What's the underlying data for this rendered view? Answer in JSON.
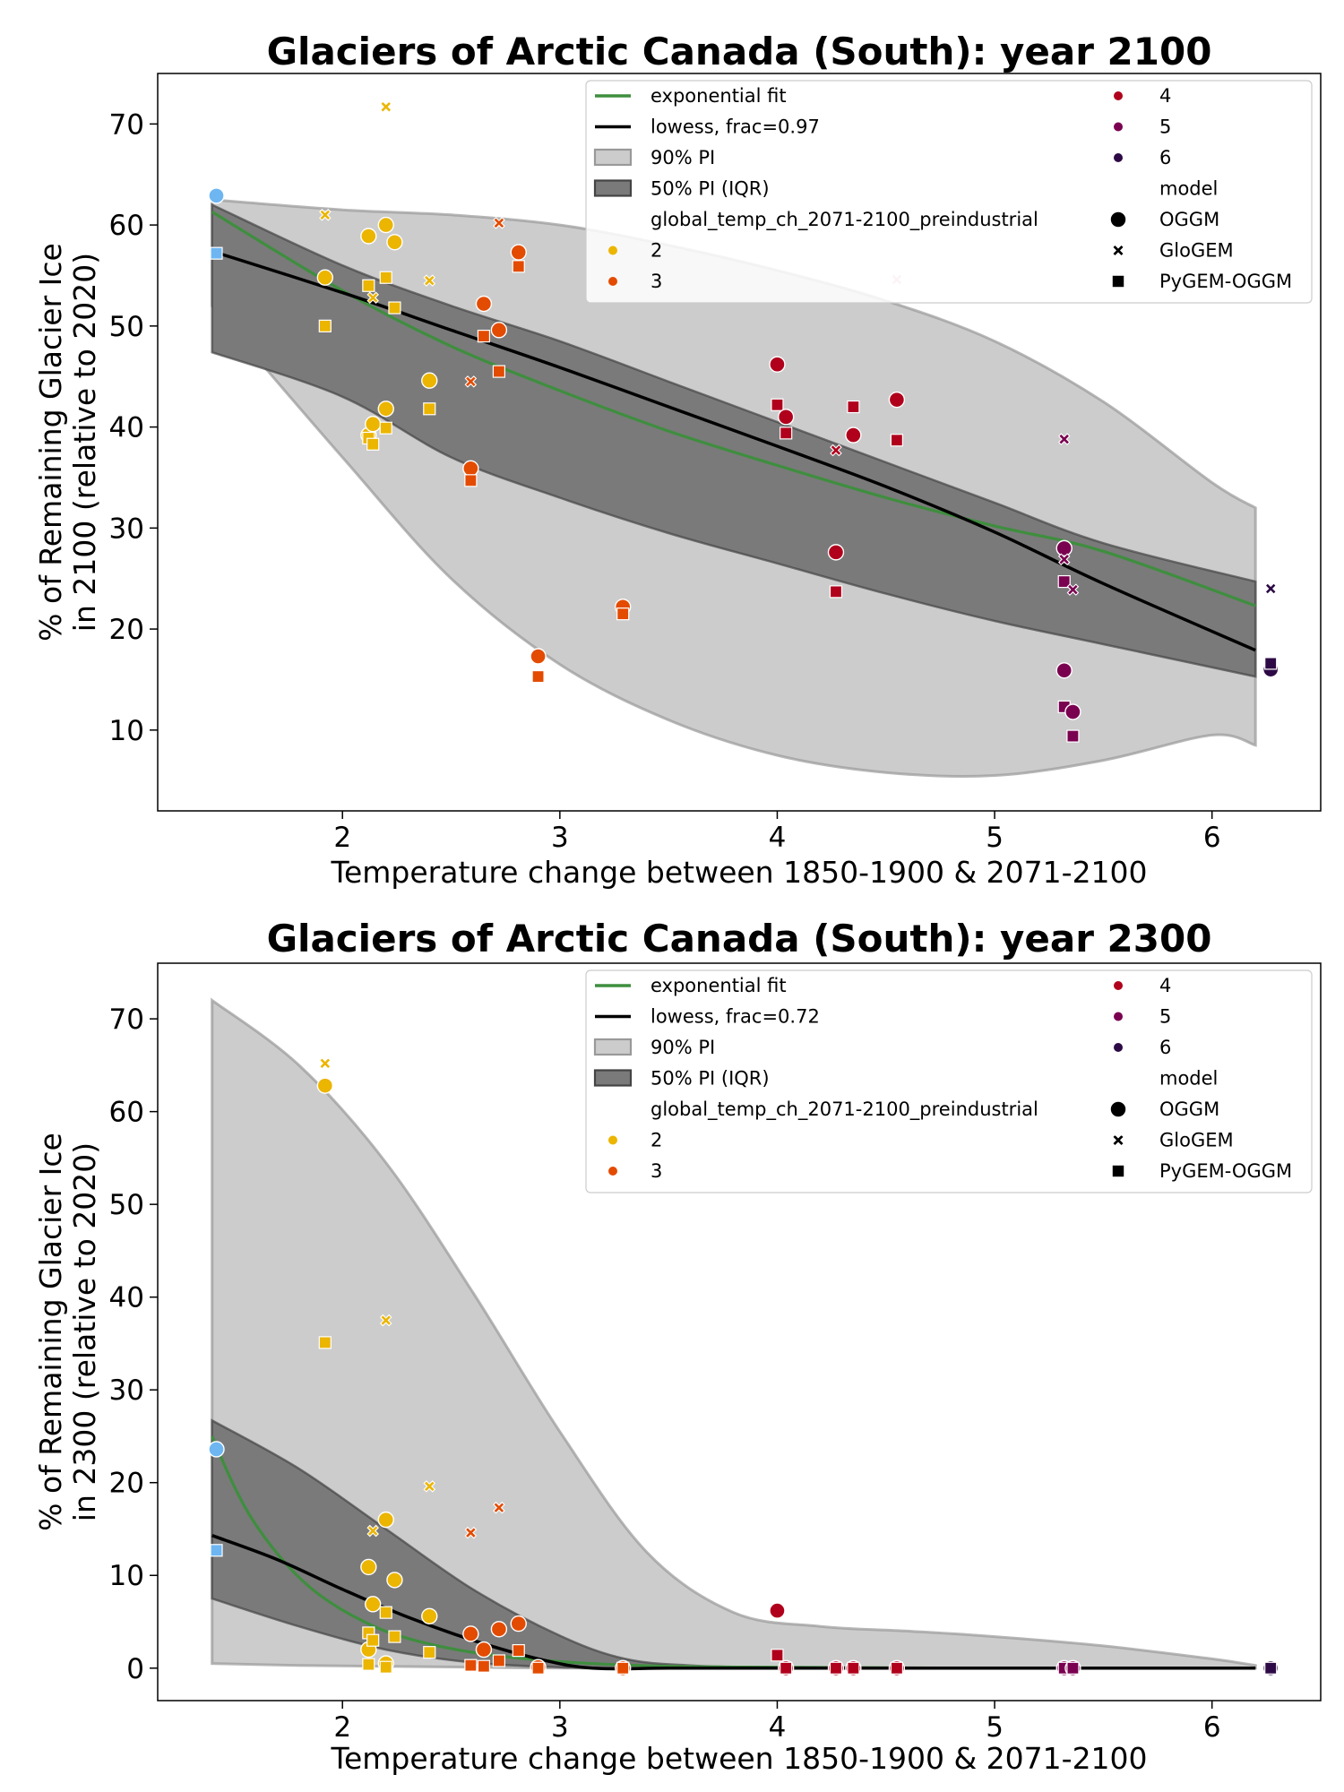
{
  "chart_data": [
    {
      "type": "scatter",
      "title": "Glaciers of Arctic Canada (South):  year 2100",
      "xlabel": "Temperature change between 1850-1900 & 2071-2100",
      "ylabel_line1": "% of Remaining Glacier Ice",
      "ylabel_line2": "in 2100 (relative to 2020)",
      "xlim": [
        1.15,
        6.5
      ],
      "ylim": [
        2,
        75
      ],
      "x_ticks": [
        2,
        3,
        4,
        5,
        6
      ],
      "y_ticks": [
        10,
        20,
        30,
        40,
        50,
        60,
        70
      ],
      "legend": {
        "fit_label": "exponential fit",
        "lowess_label": "lowess, frac=0.97",
        "pi90_label": "90% PI",
        "pi50_label": "50% PI (IQR)",
        "hue_title": "global_temp_ch_2071-2100_preindustrial",
        "hue_levels": [
          "2",
          "3",
          "4",
          "5",
          "6"
        ],
        "style_title": "model",
        "style_levels": [
          "OGGM",
          "GloGEM",
          "PyGEM-OGGM"
        ]
      },
      "exp_fit": {
        "x": [
          1.4,
          2.0,
          2.5,
          3.0,
          3.5,
          4.0,
          4.5,
          5.0,
          5.5,
          6.2
        ],
        "y": [
          61.3,
          53.5,
          48.0,
          43.6,
          39.6,
          36.2,
          33.0,
          30.2,
          27.7,
          22.3
        ]
      },
      "lowess": {
        "x": [
          1.4,
          2.0,
          2.5,
          3.0,
          3.5,
          4.0,
          4.5,
          5.0,
          5.5,
          6.2
        ],
        "y": [
          57.4,
          53.3,
          49.6,
          45.9,
          42.0,
          38.1,
          34.1,
          29.6,
          24.5,
          17.9
        ]
      },
      "pi90": {
        "x": [
          1.4,
          2.0,
          2.5,
          3.0,
          3.5,
          4.0,
          4.5,
          5.0,
          5.5,
          6.0,
          6.2
        ],
        "upper": [
          62.5,
          61.5,
          61.0,
          60.0,
          58.0,
          55.5,
          52.5,
          48.5,
          42.5,
          34.5,
          32.0
        ],
        "lower": [
          52.0,
          37.0,
          25.0,
          16.5,
          11.0,
          7.5,
          5.8,
          5.5,
          7.0,
          9.5,
          8.5
        ]
      },
      "pi50": {
        "x": [
          1.4,
          2.0,
          2.5,
          3.0,
          3.5,
          4.0,
          4.5,
          5.0,
          5.5,
          6.2
        ],
        "upper": [
          62.0,
          56.0,
          52.0,
          48.5,
          44.5,
          40.5,
          36.5,
          32.5,
          28.5,
          24.7
        ],
        "lower": [
          47.4,
          43.0,
          37.0,
          33.0,
          29.5,
          26.5,
          23.5,
          20.8,
          18.5,
          15.3
        ]
      },
      "points": [
        {
          "x": 1.42,
          "y": 62.9,
          "m": "OGGM",
          "t": 1.4
        },
        {
          "x": 1.42,
          "y": 57.2,
          "m": "PyGEM-OGGM",
          "t": 1.4
        },
        {
          "x": 1.92,
          "y": 54.8,
          "m": "OGGM",
          "t": 1.9
        },
        {
          "x": 1.92,
          "y": 61.0,
          "m": "GloGEM",
          "t": 1.9
        },
        {
          "x": 1.92,
          "y": 50.0,
          "m": "PyGEM-OGGM",
          "t": 1.9
        },
        {
          "x": 2.12,
          "y": 58.9,
          "m": "OGGM",
          "t": 2.1
        },
        {
          "x": 2.12,
          "y": 39.2,
          "m": "OGGM",
          "t": 2.1
        },
        {
          "x": 2.14,
          "y": 40.3,
          "m": "OGGM",
          "t": 2.1
        },
        {
          "x": 2.14,
          "y": 52.8,
          "m": "GloGEM",
          "t": 2.1
        },
        {
          "x": 2.12,
          "y": 54.0,
          "m": "PyGEM-OGGM",
          "t": 2.1
        },
        {
          "x": 2.12,
          "y": 38.9,
          "m": "PyGEM-OGGM",
          "t": 2.1
        },
        {
          "x": 2.14,
          "y": 38.3,
          "m": "PyGEM-OGGM",
          "t": 2.1
        },
        {
          "x": 2.2,
          "y": 60.0,
          "m": "OGGM",
          "t": 2.2
        },
        {
          "x": 2.2,
          "y": 41.8,
          "m": "OGGM",
          "t": 2.2
        },
        {
          "x": 2.2,
          "y": 71.7,
          "m": "GloGEM",
          "t": 2.2
        },
        {
          "x": 2.2,
          "y": 54.8,
          "m": "PyGEM-OGGM",
          "t": 2.2
        },
        {
          "x": 2.2,
          "y": 39.9,
          "m": "PyGEM-OGGM",
          "t": 2.2
        },
        {
          "x": 2.24,
          "y": 58.3,
          "m": "OGGM",
          "t": 2.2
        },
        {
          "x": 2.24,
          "y": 51.8,
          "m": "PyGEM-OGGM",
          "t": 2.2
        },
        {
          "x": 2.4,
          "y": 44.6,
          "m": "OGGM",
          "t": 2.4
        },
        {
          "x": 2.4,
          "y": 54.5,
          "m": "GloGEM",
          "t": 2.4
        },
        {
          "x": 2.4,
          "y": 41.8,
          "m": "PyGEM-OGGM",
          "t": 2.4
        },
        {
          "x": 2.59,
          "y": 35.9,
          "m": "OGGM",
          "t": 2.6
        },
        {
          "x": 2.59,
          "y": 44.5,
          "m": "GloGEM",
          "t": 2.6
        },
        {
          "x": 2.59,
          "y": 34.7,
          "m": "PyGEM-OGGM",
          "t": 2.6
        },
        {
          "x": 2.65,
          "y": 52.2,
          "m": "OGGM",
          "t": 2.65
        },
        {
          "x": 2.65,
          "y": 49.0,
          "m": "PyGEM-OGGM",
          "t": 2.65
        },
        {
          "x": 2.72,
          "y": 49.6,
          "m": "OGGM",
          "t": 2.7
        },
        {
          "x": 2.72,
          "y": 60.2,
          "m": "GloGEM",
          "t": 2.7
        },
        {
          "x": 2.72,
          "y": 45.5,
          "m": "PyGEM-OGGM",
          "t": 2.7
        },
        {
          "x": 2.81,
          "y": 57.3,
          "m": "OGGM",
          "t": 2.8
        },
        {
          "x": 2.81,
          "y": 55.9,
          "m": "PyGEM-OGGM",
          "t": 2.8
        },
        {
          "x": 2.9,
          "y": 17.3,
          "m": "OGGM",
          "t": 2.9
        },
        {
          "x": 2.9,
          "y": 15.3,
          "m": "PyGEM-OGGM",
          "t": 2.9
        },
        {
          "x": 3.29,
          "y": 22.2,
          "m": "OGGM",
          "t": 3.3
        },
        {
          "x": 3.29,
          "y": 21.5,
          "m": "PyGEM-OGGM",
          "t": 3.3
        },
        {
          "x": 4.0,
          "y": 46.2,
          "m": "OGGM",
          "t": 4.0
        },
        {
          "x": 4.0,
          "y": 42.2,
          "m": "PyGEM-OGGM",
          "t": 4.0
        },
        {
          "x": 4.04,
          "y": 41.0,
          "m": "OGGM",
          "t": 4.05
        },
        {
          "x": 4.04,
          "y": 39.4,
          "m": "PyGEM-OGGM",
          "t": 4.05
        },
        {
          "x": 4.27,
          "y": 27.6,
          "m": "OGGM",
          "t": 4.3
        },
        {
          "x": 4.27,
          "y": 37.7,
          "m": "GloGEM",
          "t": 4.3
        },
        {
          "x": 4.27,
          "y": 23.7,
          "m": "PyGEM-OGGM",
          "t": 4.3
        },
        {
          "x": 4.35,
          "y": 39.2,
          "m": "OGGM",
          "t": 4.35
        },
        {
          "x": 4.35,
          "y": 42.0,
          "m": "PyGEM-OGGM",
          "t": 4.35
        },
        {
          "x": 4.55,
          "y": 42.7,
          "m": "OGGM",
          "t": 4.55
        },
        {
          "x": 4.55,
          "y": 54.6,
          "m": "GloGEM",
          "t": 4.55,
          "faint": true
        },
        {
          "x": 4.55,
          "y": 38.7,
          "m": "PyGEM-OGGM",
          "t": 4.55
        },
        {
          "x": 5.32,
          "y": 28.0,
          "m": "OGGM",
          "t": 5.3
        },
        {
          "x": 5.32,
          "y": 15.9,
          "m": "OGGM",
          "t": 5.3
        },
        {
          "x": 5.32,
          "y": 38.8,
          "m": "GloGEM",
          "t": 5.3
        },
        {
          "x": 5.32,
          "y": 26.9,
          "m": "GloGEM",
          "t": 5.3
        },
        {
          "x": 5.32,
          "y": 24.7,
          "m": "PyGEM-OGGM",
          "t": 5.3
        },
        {
          "x": 5.32,
          "y": 12.3,
          "m": "PyGEM-OGGM",
          "t": 5.3
        },
        {
          "x": 5.36,
          "y": 11.8,
          "m": "OGGM",
          "t": 5.35
        },
        {
          "x": 5.36,
          "y": 23.9,
          "m": "GloGEM",
          "t": 5.35
        },
        {
          "x": 5.36,
          "y": 9.4,
          "m": "PyGEM-OGGM",
          "t": 5.35
        },
        {
          "x": 6.27,
          "y": 16.0,
          "m": "OGGM",
          "t": 6.27
        },
        {
          "x": 6.27,
          "y": 24.0,
          "m": "GloGEM",
          "t": 6.27
        },
        {
          "x": 6.27,
          "y": 16.6,
          "m": "PyGEM-OGGM",
          "t": 6.27
        }
      ]
    },
    {
      "type": "scatter",
      "title": "Glaciers of Arctic Canada (South):  year 2300",
      "xlabel": "Temperature change between 1850-1900 & 2071-2100",
      "ylabel_line1": "% of Remaining Glacier Ice",
      "ylabel_line2": "in 2300 (relative to 2020)",
      "xlim": [
        1.15,
        6.5
      ],
      "ylim": [
        -3.5,
        76
      ],
      "x_ticks": [
        2,
        3,
        4,
        5,
        6
      ],
      "y_ticks": [
        0,
        10,
        20,
        30,
        40,
        50,
        60,
        70
      ],
      "legend": {
        "fit_label": "exponential fit",
        "lowess_label": "lowess, frac=0.72",
        "pi90_label": "90% PI",
        "pi50_label": "50% PI (IQR)",
        "hue_title": "global_temp_ch_2071-2100_preindustrial",
        "hue_levels": [
          "2",
          "3",
          "4",
          "5",
          "6"
        ],
        "style_title": "model",
        "style_levels": [
          "OGGM",
          "GloGEM",
          "PyGEM-OGGM"
        ]
      },
      "exp_fit": {
        "x": [
          1.4,
          1.5,
          1.6,
          1.75,
          1.9,
          2.1,
          2.3,
          2.6,
          3.0,
          3.5,
          4.0,
          5.0,
          6.2
        ],
        "y": [
          25.0,
          19.7,
          15.5,
          11.0,
          7.8,
          5.0,
          3.2,
          1.7,
          0.7,
          0.2,
          0.1,
          0.0,
          0.0
        ]
      },
      "lowess": {
        "x": [
          1.4,
          1.7,
          2.0,
          2.3,
          2.6,
          2.9,
          3.15,
          3.5,
          4.0,
          5.0,
          6.2
        ],
        "y": [
          14.3,
          11.7,
          8.5,
          5.5,
          3.0,
          1.0,
          0.0,
          0.0,
          0.0,
          0.0,
          0.0
        ]
      },
      "pi90": {
        "x": [
          1.4,
          1.8,
          2.2,
          2.6,
          3.0,
          3.4,
          3.8,
          4.2,
          4.6,
          5.0,
          5.5,
          6.0,
          6.2
        ],
        "upper": [
          72.0,
          65.0,
          54.5,
          40.5,
          25.5,
          12.5,
          6.0,
          4.5,
          4.0,
          3.4,
          2.4,
          1.0,
          0.3
        ],
        "lower": [
          0.5,
          0.3,
          0.2,
          0.1,
          0.0,
          0.0,
          0.0,
          0.0,
          0.0,
          0.0,
          0.0,
          0.0,
          0.0
        ]
      },
      "pi50": {
        "x": [
          1.4,
          1.8,
          2.2,
          2.6,
          3.0,
          3.3,
          3.6,
          4.0,
          5.0,
          6.2
        ],
        "upper": [
          26.7,
          21.5,
          15.0,
          8.5,
          3.5,
          1.0,
          0.3,
          0.1,
          0.0,
          0.0
        ],
        "lower": [
          7.5,
          4.5,
          2.0,
          0.6,
          0.1,
          0.0,
          0.0,
          0.0,
          0.0,
          0.0
        ]
      },
      "points": [
        {
          "x": 1.42,
          "y": 23.6,
          "m": "OGGM",
          "t": 1.4
        },
        {
          "x": 1.42,
          "y": 12.7,
          "m": "PyGEM-OGGM",
          "t": 1.4
        },
        {
          "x": 1.92,
          "y": 62.8,
          "m": "OGGM",
          "t": 1.9
        },
        {
          "x": 1.92,
          "y": 65.2,
          "m": "GloGEM",
          "t": 1.9
        },
        {
          "x": 1.92,
          "y": 35.1,
          "m": "PyGEM-OGGM",
          "t": 1.9
        },
        {
          "x": 2.12,
          "y": 10.9,
          "m": "OGGM",
          "t": 2.1
        },
        {
          "x": 2.12,
          "y": 2.0,
          "m": "OGGM",
          "t": 2.1
        },
        {
          "x": 2.14,
          "y": 6.9,
          "m": "OGGM",
          "t": 2.1
        },
        {
          "x": 2.14,
          "y": 14.8,
          "m": "GloGEM",
          "t": 2.1
        },
        {
          "x": 2.12,
          "y": 3.8,
          "m": "PyGEM-OGGM",
          "t": 2.1
        },
        {
          "x": 2.12,
          "y": 0.4,
          "m": "PyGEM-OGGM",
          "t": 2.1
        },
        {
          "x": 2.14,
          "y": 3.0,
          "m": "PyGEM-OGGM",
          "t": 2.1
        },
        {
          "x": 2.2,
          "y": 16.0,
          "m": "OGGM",
          "t": 2.2
        },
        {
          "x": 2.2,
          "y": 0.5,
          "m": "OGGM",
          "t": 2.2
        },
        {
          "x": 2.2,
          "y": 37.5,
          "m": "GloGEM",
          "t": 2.2
        },
        {
          "x": 2.2,
          "y": 6.0,
          "m": "PyGEM-OGGM",
          "t": 2.2
        },
        {
          "x": 2.2,
          "y": 0.1,
          "m": "PyGEM-OGGM",
          "t": 2.2
        },
        {
          "x": 2.24,
          "y": 9.5,
          "m": "OGGM",
          "t": 2.2
        },
        {
          "x": 2.24,
          "y": 3.4,
          "m": "PyGEM-OGGM",
          "t": 2.2
        },
        {
          "x": 2.4,
          "y": 5.6,
          "m": "OGGM",
          "t": 2.4
        },
        {
          "x": 2.4,
          "y": 19.6,
          "m": "GloGEM",
          "t": 2.4
        },
        {
          "x": 2.4,
          "y": 1.7,
          "m": "PyGEM-OGGM",
          "t": 2.4
        },
        {
          "x": 2.59,
          "y": 3.7,
          "m": "OGGM",
          "t": 2.6
        },
        {
          "x": 2.59,
          "y": 14.6,
          "m": "GloGEM",
          "t": 2.6
        },
        {
          "x": 2.59,
          "y": 0.3,
          "m": "PyGEM-OGGM",
          "t": 2.6
        },
        {
          "x": 2.65,
          "y": 2.0,
          "m": "OGGM",
          "t": 2.65
        },
        {
          "x": 2.65,
          "y": 0.2,
          "m": "PyGEM-OGGM",
          "t": 2.65
        },
        {
          "x": 2.72,
          "y": 4.2,
          "m": "OGGM",
          "t": 2.7
        },
        {
          "x": 2.72,
          "y": 17.3,
          "m": "GloGEM",
          "t": 2.7
        },
        {
          "x": 2.72,
          "y": 0.8,
          "m": "PyGEM-OGGM",
          "t": 2.7
        },
        {
          "x": 2.81,
          "y": 4.8,
          "m": "OGGM",
          "t": 2.8
        },
        {
          "x": 2.81,
          "y": 1.9,
          "m": "PyGEM-OGGM",
          "t": 2.8
        },
        {
          "x": 2.9,
          "y": 0.1,
          "m": "OGGM",
          "t": 2.9
        },
        {
          "x": 2.9,
          "y": 0.0,
          "m": "PyGEM-OGGM",
          "t": 2.9
        },
        {
          "x": 3.29,
          "y": 0.0,
          "m": "OGGM",
          "t": 3.3
        },
        {
          "x": 3.29,
          "y": 0.0,
          "m": "PyGEM-OGGM",
          "t": 3.3
        },
        {
          "x": 4.0,
          "y": 6.2,
          "m": "OGGM",
          "t": 4.0
        },
        {
          "x": 4.0,
          "y": 1.4,
          "m": "PyGEM-OGGM",
          "t": 4.0
        },
        {
          "x": 4.04,
          "y": 0.0,
          "m": "OGGM",
          "t": 4.05
        },
        {
          "x": 4.04,
          "y": 0.0,
          "m": "PyGEM-OGGM",
          "t": 4.05
        },
        {
          "x": 4.27,
          "y": 0.0,
          "m": "OGGM",
          "t": 4.3
        },
        {
          "x": 4.27,
          "y": 0.0,
          "m": "GloGEM",
          "t": 4.3
        },
        {
          "x": 4.27,
          "y": 0.0,
          "m": "PyGEM-OGGM",
          "t": 4.3
        },
        {
          "x": 4.35,
          "y": 0.0,
          "m": "OGGM",
          "t": 4.35
        },
        {
          "x": 4.35,
          "y": 0.0,
          "m": "PyGEM-OGGM",
          "t": 4.35
        },
        {
          "x": 4.55,
          "y": 0.0,
          "m": "OGGM",
          "t": 4.55
        },
        {
          "x": 4.55,
          "y": 0.0,
          "m": "GloGEM",
          "t": 4.55
        },
        {
          "x": 4.55,
          "y": 0.0,
          "m": "PyGEM-OGGM",
          "t": 4.55
        },
        {
          "x": 5.32,
          "y": 0.0,
          "m": "OGGM",
          "t": 5.3
        },
        {
          "x": 5.32,
          "y": 0.0,
          "m": "GloGEM",
          "t": 5.3
        },
        {
          "x": 5.32,
          "y": 0.0,
          "m": "PyGEM-OGGM",
          "t": 5.3
        },
        {
          "x": 5.36,
          "y": 0.0,
          "m": "OGGM",
          "t": 5.35
        },
        {
          "x": 5.36,
          "y": 0.0,
          "m": "GloGEM",
          "t": 5.35
        },
        {
          "x": 5.36,
          "y": 0.0,
          "m": "PyGEM-OGGM",
          "t": 5.35
        },
        {
          "x": 6.27,
          "y": 0.0,
          "m": "OGGM",
          "t": 6.27
        },
        {
          "x": 6.27,
          "y": 0.0,
          "m": "GloGEM",
          "t": 6.27
        },
        {
          "x": 6.27,
          "y": 0.0,
          "m": "PyGEM-OGGM",
          "t": 6.27
        }
      ]
    }
  ],
  "colors": {
    "exp_fit": "#3e8e3e",
    "lowess": "#000000",
    "pi90_fill": "#cccccc",
    "pi90_edge": "#999999",
    "pi50_fill": "#7a7a7a",
    "pi50_edge": "#444444",
    "hue_2": "#ebb500",
    "hue_3": "#e34b00",
    "hue_4": "#b0001c",
    "hue_5": "#7a0050",
    "hue_6": "#2d0a45",
    "cold_point": "#6db6f2",
    "legend_marker": "#000000"
  }
}
